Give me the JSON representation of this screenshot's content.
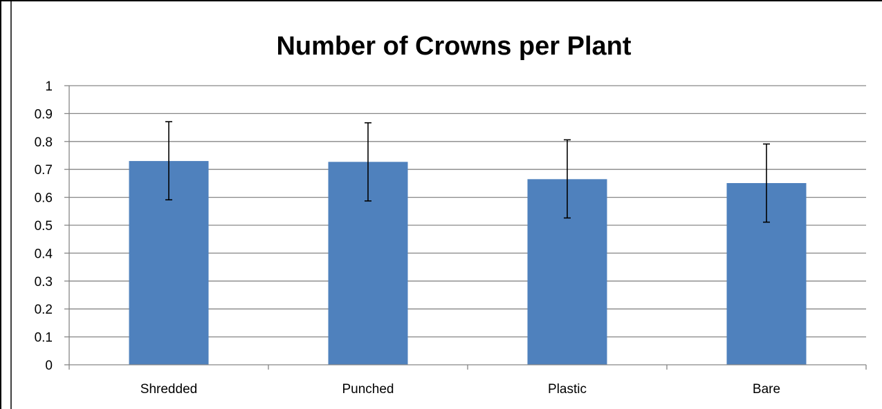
{
  "chart_data": {
    "type": "bar",
    "title": "Number of Crowns per Plant",
    "xlabel": "",
    "ylabel": "",
    "categories": [
      "Shredded",
      "Punched",
      "Plastic",
      "Bare"
    ],
    "series": [
      {
        "values": [
          0.73,
          0.727,
          0.665,
          0.651
        ],
        "error_low": [
          0.591,
          0.587,
          0.526,
          0.511
        ],
        "error_high": [
          0.871,
          0.867,
          0.806,
          0.791
        ]
      }
    ],
    "ylim": [
      0,
      1
    ],
    "yticks": [
      "0",
      "0.1",
      "0.2",
      "0.3",
      "0.4",
      "0.5",
      "0.6",
      "0.7",
      "0.8",
      "0.9",
      "1"
    ],
    "grid": true,
    "legend": "none",
    "colors": {
      "bar": "#4F81BD",
      "grid": "#868686",
      "frame": "#000000",
      "error_bar": "#000000"
    }
  }
}
